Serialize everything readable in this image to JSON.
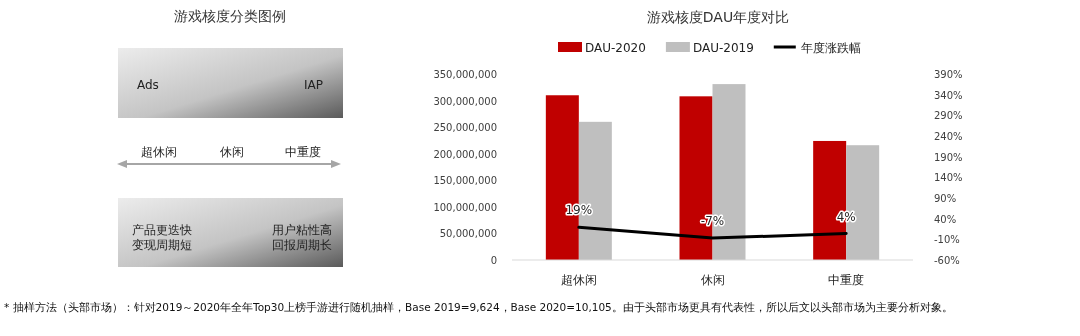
{
  "chart_data": [
    {
      "type": "other",
      "title": "游戏核度分类图例",
      "annotations": [
        "Ads",
        "IAP",
        "超休闲",
        "休闲",
        "中重度",
        "产品更迭快",
        "变现周期短",
        "用户粘性高",
        "回报周期长"
      ]
    },
    {
      "type": "bar",
      "title": "游戏核度DAU年度对比",
      "categories": [
        "超休闲",
        "休闲",
        "中重度"
      ],
      "series": [
        {
          "name": "DAU-2020",
          "color": "#c00000",
          "values": [
            310000000,
            308000000,
            224000000
          ]
        },
        {
          "name": "DAU-2019",
          "color": "#bfbfbf",
          "values": [
            260000000,
            331000000,
            216000000
          ]
        },
        {
          "name": "年度涨跌幅",
          "type": "line",
          "axis": "y2",
          "color": "#000000",
          "values": [
            19,
            -7,
            4
          ],
          "value_labels": [
            "19%",
            "-7%",
            "4%"
          ]
        }
      ],
      "ylim": [
        0,
        350000000
      ],
      "yticks": [
        0,
        {
          "value": 50000000,
          "label": "50,000,000"
        },
        {
          "value": 100000000,
          "label": "100,000,000"
        },
        {
          "value": 150000000,
          "label": "150,000,000"
        },
        {
          "value": 200000000,
          "label": "200,000,000"
        },
        {
          "value": 250000000,
          "label": "250,000,000"
        },
        {
          "value": 300000000,
          "label": "300,000,000"
        },
        {
          "value": 350000000,
          "label": "350,000,000"
        }
      ],
      "y2lim": [
        -60,
        390
      ],
      "y2ticks": [
        {
          "value": -60,
          "label": "-60%"
        },
        {
          "value": -10,
          "label": "-10%"
        },
        {
          "value": 40,
          "label": "40%"
        },
        {
          "value": 90,
          "label": "90%"
        },
        {
          "value": 140,
          "label": "140%"
        },
        {
          "value": 190,
          "label": "190%"
        },
        {
          "value": 240,
          "label": "240%"
        },
        {
          "value": 290,
          "label": "290%"
        },
        {
          "value": 340,
          "label": "340%"
        },
        {
          "value": 390,
          "label": "390%"
        }
      ],
      "legend": "top",
      "grid": false,
      "annotations": [
        "* 抽样方法（头部市场）：针对2019～2020年全年Top30上榜手游进行随机抽样，Base 2019=9,624，Base 2020=10,105。由于头部市场更具有代表性，所以后文以头部市场为主要分析对象。"
      ]
    }
  ]
}
